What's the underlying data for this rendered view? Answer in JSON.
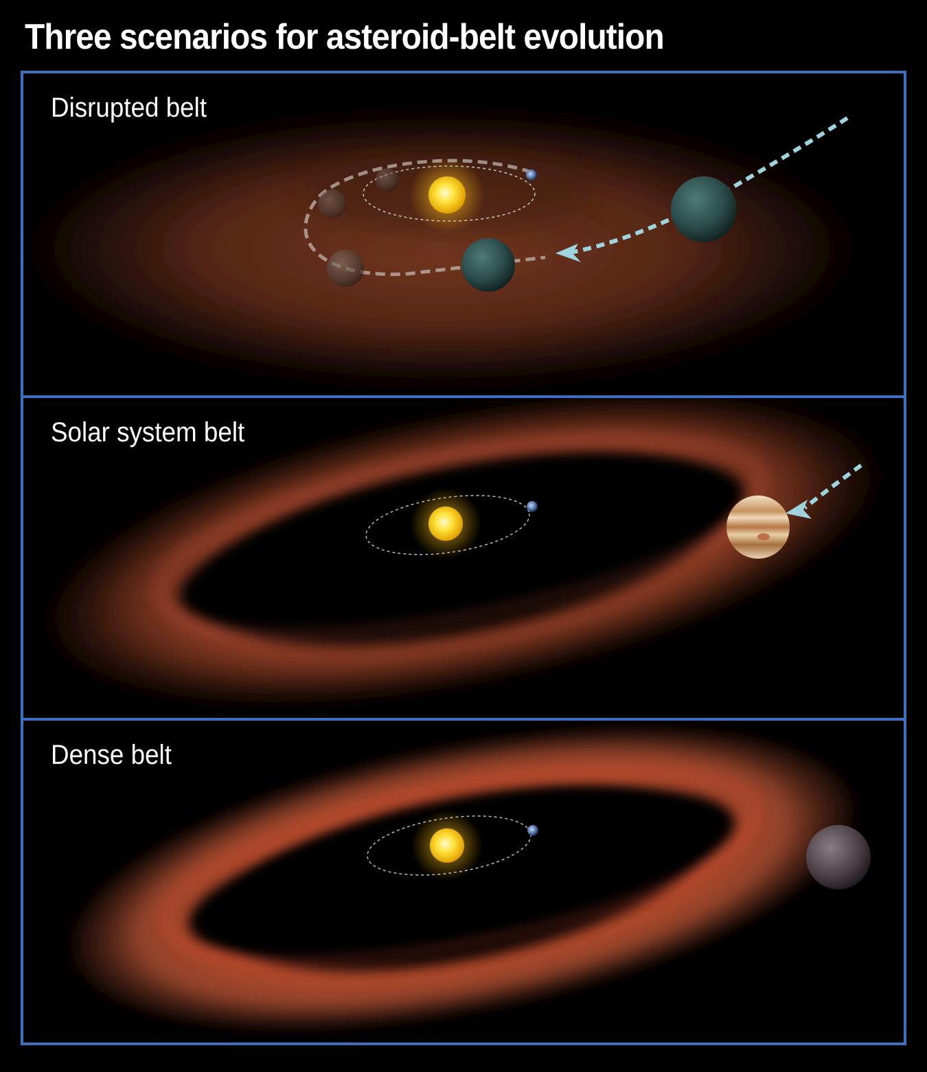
{
  "title": "Three scenarios for asteroid-belt evolution",
  "panels": [
    {
      "label": "Disrupted belt"
    },
    {
      "label": "Solar system belt"
    },
    {
      "label": "Dense belt"
    }
  ],
  "colors": {
    "frame": "#3f6fc0",
    "dust": "#b0502a",
    "sun": "#ffd21a",
    "orbit": "#e8eef5",
    "migration_path": "#9fd4de"
  },
  "icons": {
    "sun": "sun-icon",
    "earth": "earth-icon",
    "jupiter": "jupiter-icon",
    "giant_planet": "planet-icon",
    "migration_arrow": "arrow-icon"
  }
}
